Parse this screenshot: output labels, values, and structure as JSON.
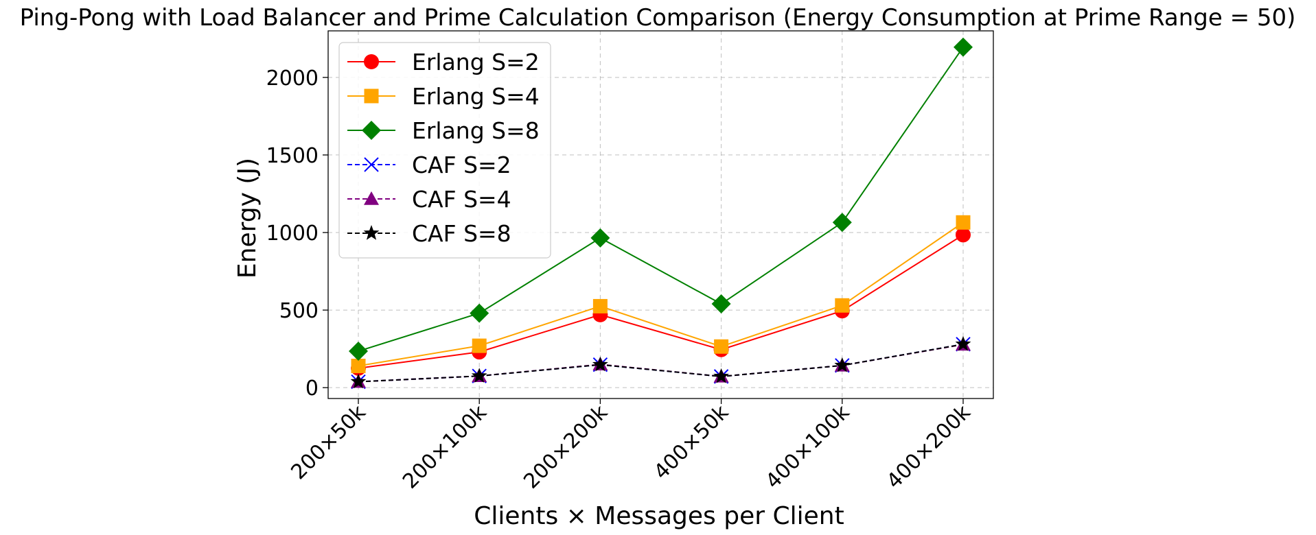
{
  "chart_data": {
    "type": "line",
    "title": "Ping-Pong with Load Balancer and Prime Calculation Comparison (Energy Consumption at Prime Range = 50)",
    "xlabel": "Clients × Messages per Client",
    "ylabel": "Energy (J)",
    "categories": [
      "200×50k",
      "200×100k",
      "200×200k",
      "400×50k",
      "400×100k",
      "400×200k"
    ],
    "ylim": [
      -70,
      2300
    ],
    "yticks": [
      0,
      500,
      1000,
      1500,
      2000
    ],
    "grid": true,
    "legend_position": "top-left",
    "series": [
      {
        "name": "Erlang S=2",
        "values": [
          125,
          230,
          470,
          245,
          495,
          985
        ],
        "color": "#ff0000",
        "marker": "circle",
        "dash": false
      },
      {
        "name": "Erlang S=4",
        "values": [
          140,
          270,
          525,
          265,
          530,
          1065
        ],
        "color": "#ffa500",
        "marker": "square",
        "dash": false
      },
      {
        "name": "Erlang S=8",
        "values": [
          235,
          480,
          965,
          540,
          1065,
          2195
        ],
        "color": "#008000",
        "marker": "diamond",
        "dash": false
      },
      {
        "name": "CAF S=2",
        "values": [
          38,
          75,
          148,
          72,
          143,
          280
        ],
        "color": "#0000ff",
        "marker": "x",
        "dash": true
      },
      {
        "name": "CAF S=4",
        "values": [
          38,
          75,
          150,
          72,
          143,
          278
        ],
        "color": "#800080",
        "marker": "triangle",
        "dash": true
      },
      {
        "name": "CAF S=8",
        "values": [
          38,
          75,
          148,
          72,
          143,
          280
        ],
        "color": "#000000",
        "marker": "star",
        "dash": true
      }
    ]
  }
}
